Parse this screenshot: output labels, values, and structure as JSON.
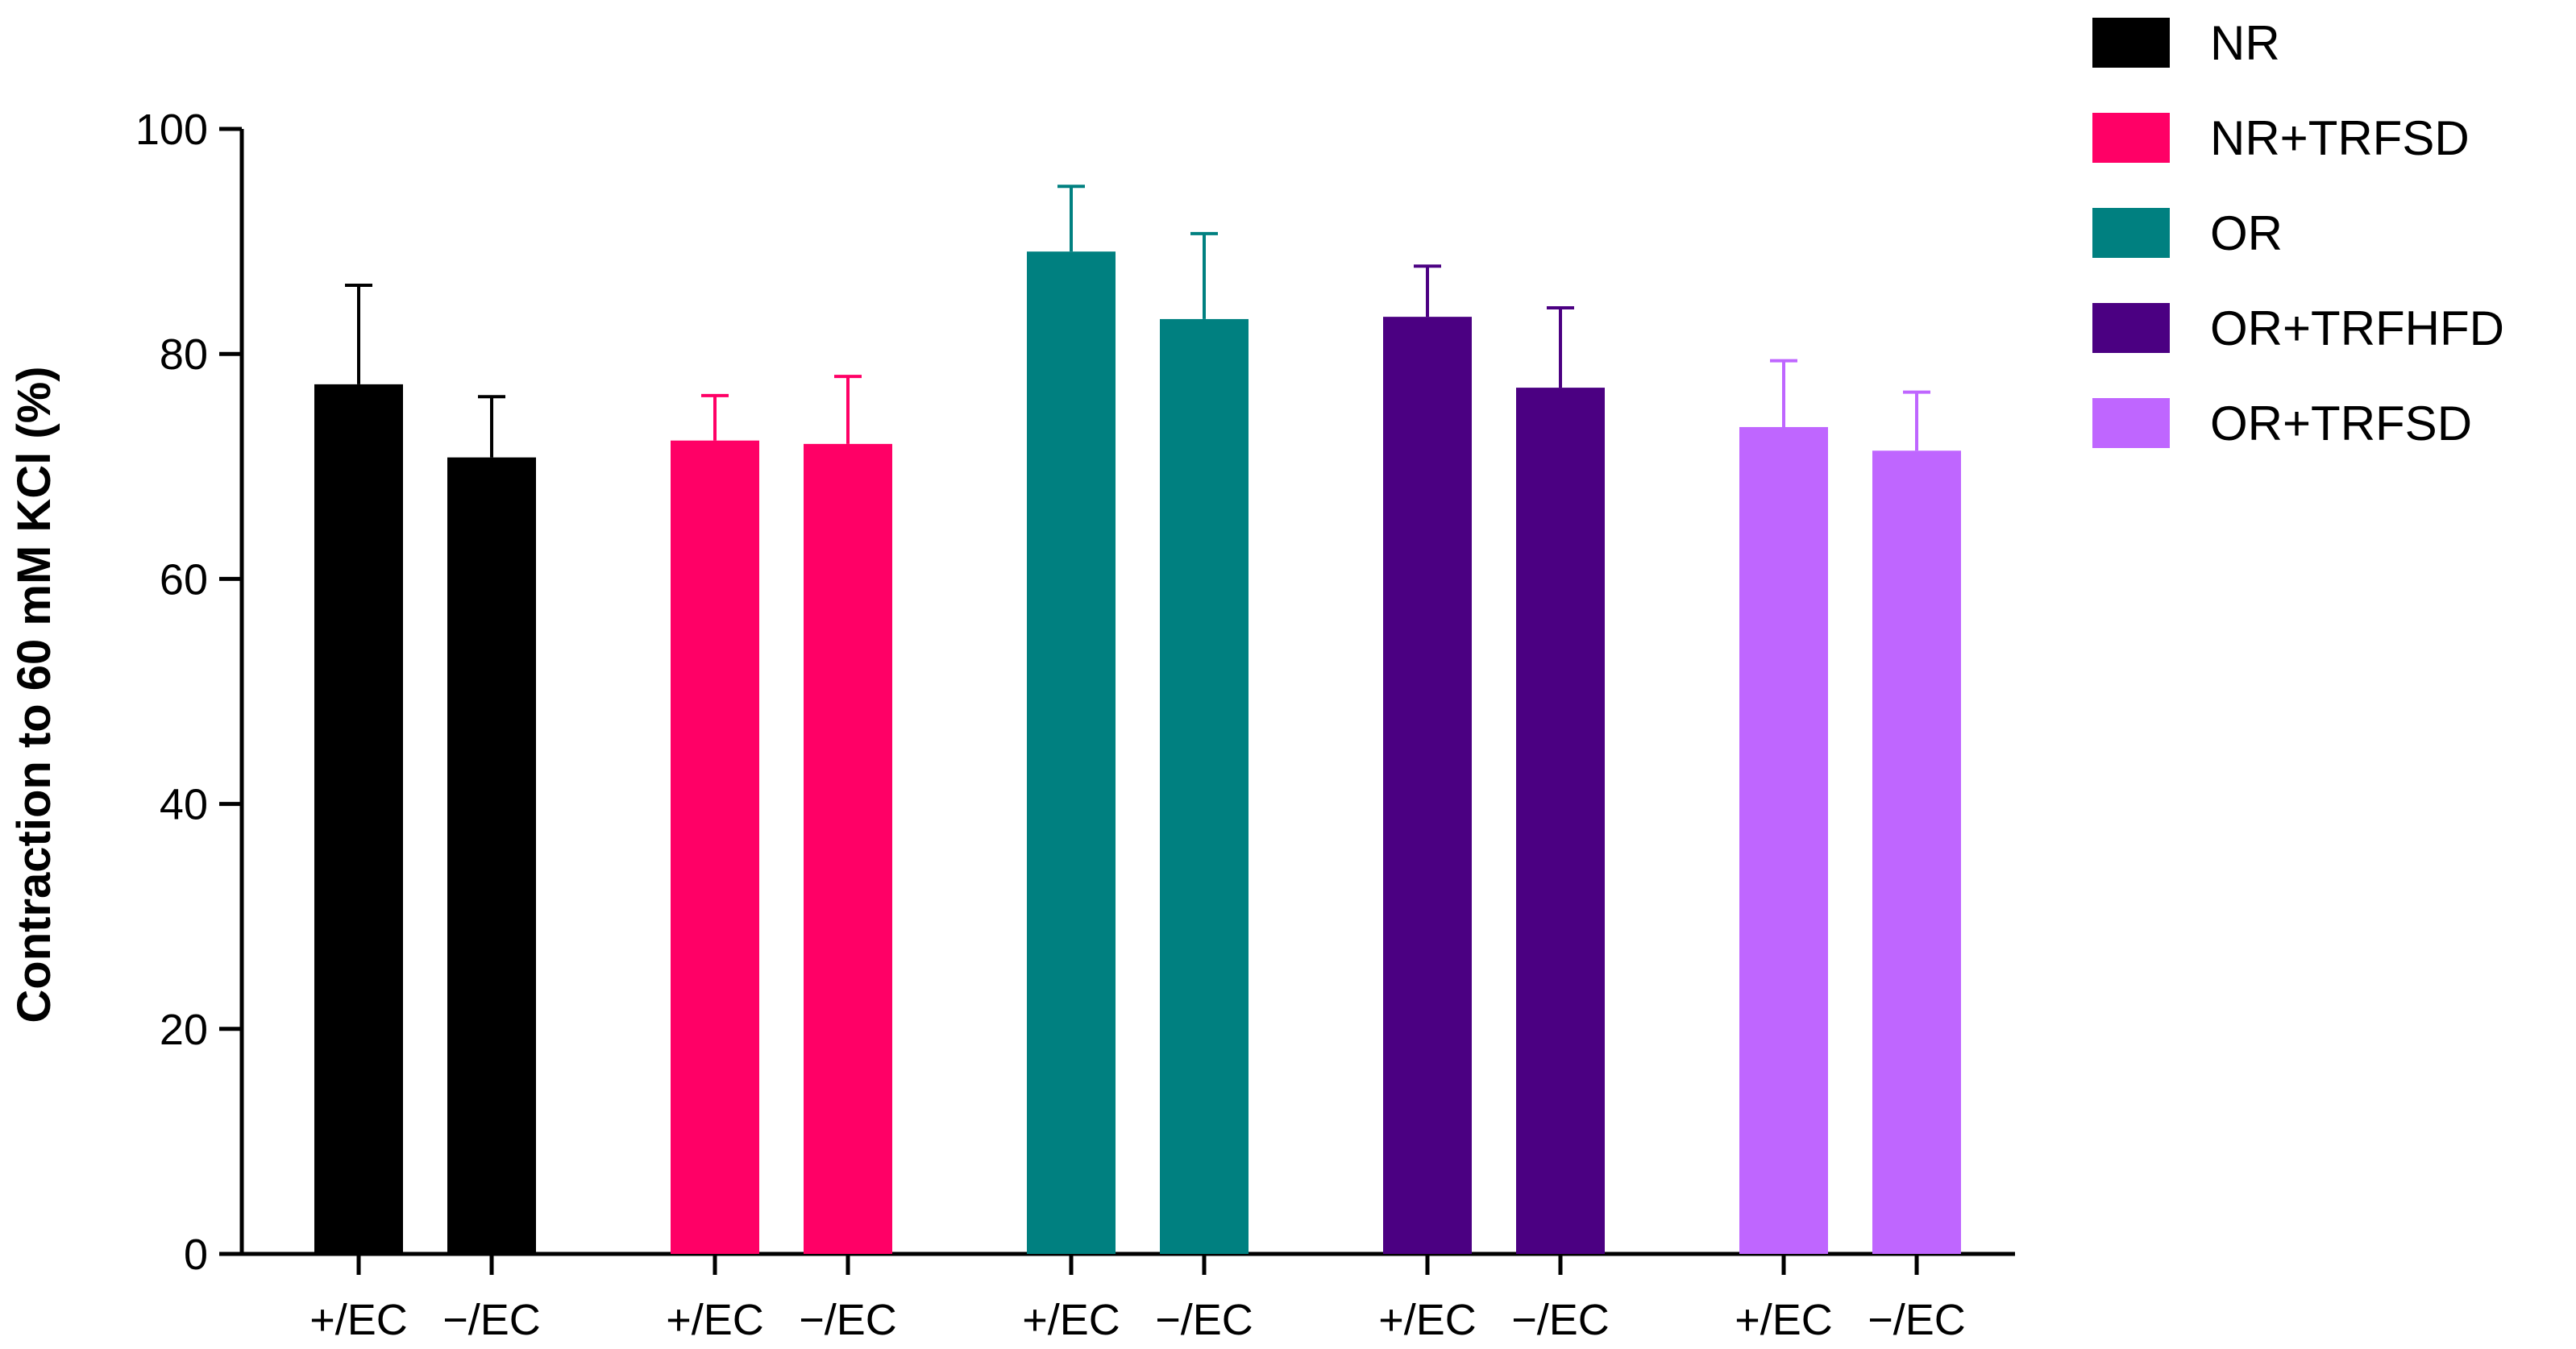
{
  "chart_data": {
    "type": "bar",
    "ylabel": "Contraction to 60 mM KCl (%)",
    "xlabel": "",
    "ylim": [
      0,
      100
    ],
    "yticks": [
      0,
      20,
      40,
      60,
      80,
      100
    ],
    "grid": false,
    "legend_position": "top-right",
    "error_bars": "upper",
    "groups": [
      {
        "name": "NR",
        "color": "#000000",
        "bars": [
          {
            "label": "+/EC",
            "value": 77.3,
            "error": 8.8
          },
          {
            "label": "−/EC",
            "value": 70.8,
            "error": 5.4
          }
        ]
      },
      {
        "name": "NR+TRFSD",
        "color": "#ff0066",
        "bars": [
          {
            "label": "+/EC",
            "value": 72.3,
            "error": 4.0
          },
          {
            "label": "−/EC",
            "value": 72.0,
            "error": 6.0
          }
        ]
      },
      {
        "name": "OR",
        "color": "#008080",
        "bars": [
          {
            "label": "+/EC",
            "value": 89.1,
            "error": 5.8
          },
          {
            "label": "−/EC",
            "value": 83.1,
            "error": 7.6
          }
        ]
      },
      {
        "name": "OR+TRFHFD",
        "color": "#4b0082",
        "bars": [
          {
            "label": "+/EC",
            "value": 83.3,
            "error": 4.5
          },
          {
            "label": "−/EC",
            "value": 77.0,
            "error": 7.1
          }
        ]
      },
      {
        "name": "OR+TRFSD",
        "color": "#bf66ff",
        "bars": [
          {
            "label": "+/EC",
            "value": 73.5,
            "error": 5.9
          },
          {
            "label": "−/EC",
            "value": 71.4,
            "error": 5.2
          }
        ]
      }
    ]
  }
}
